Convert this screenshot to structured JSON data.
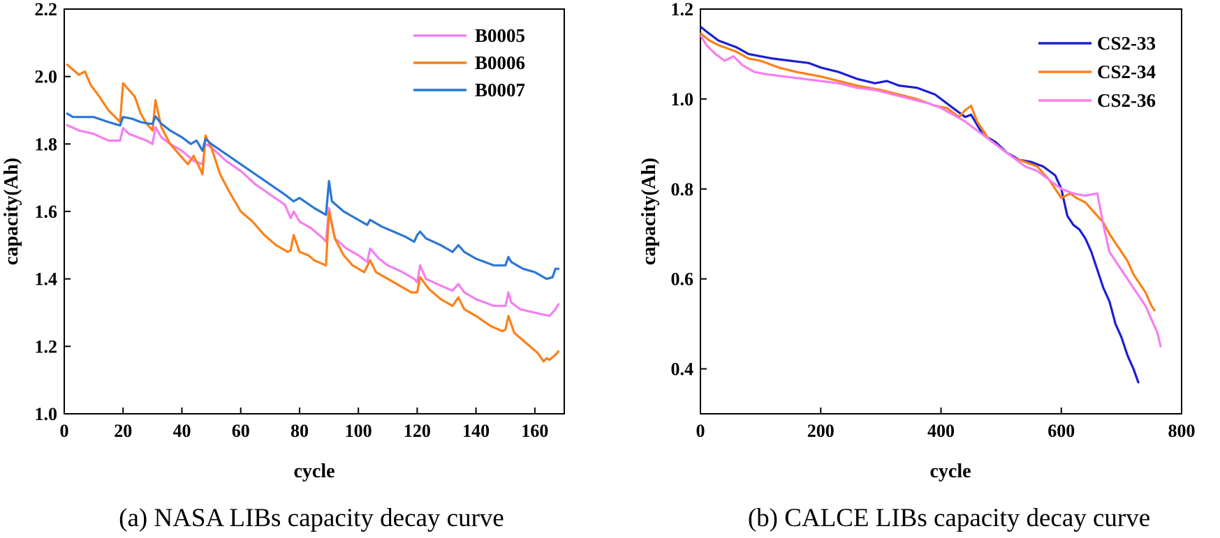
{
  "chart_data": [
    {
      "type": "line",
      "title": "",
      "caption": "(a) NASA LIBs capacity decay curve",
      "xlabel": "cycle",
      "ylabel": "capacity(Ah)",
      "xlim": [
        0,
        170
      ],
      "ylim": [
        1.0,
        2.2
      ],
      "xticks": [
        0,
        20,
        40,
        60,
        80,
        100,
        120,
        140,
        160
      ],
      "yticks": [
        1.0,
        1.2,
        1.4,
        1.6,
        1.8,
        2.0,
        2.2
      ],
      "ytick_labels": [
        "1.0",
        "1.2",
        "1.4",
        "1.6",
        "1.8",
        "2.0",
        "2.2"
      ],
      "legend_position": "top-right",
      "series": [
        {
          "name": "B0005",
          "color": "#f57ef0",
          "x": [
            1,
            5,
            10,
            15,
            19,
            20,
            22,
            25,
            28,
            30,
            31,
            33,
            36,
            40,
            44,
            47,
            48,
            50,
            55,
            60,
            65,
            70,
            75,
            77,
            78,
            80,
            84,
            88,
            89,
            90,
            92,
            96,
            100,
            103,
            104,
            107,
            110,
            115,
            119,
            120,
            121,
            123,
            128,
            132,
            134,
            136,
            140,
            146,
            150,
            151,
            152,
            155,
            160,
            165,
            167,
            168
          ],
          "y": [
            1.856,
            1.84,
            1.83,
            1.81,
            1.81,
            1.847,
            1.83,
            1.82,
            1.81,
            1.8,
            1.85,
            1.82,
            1.8,
            1.78,
            1.75,
            1.74,
            1.8,
            1.79,
            1.75,
            1.72,
            1.68,
            1.65,
            1.62,
            1.58,
            1.6,
            1.57,
            1.55,
            1.52,
            1.51,
            1.61,
            1.52,
            1.49,
            1.47,
            1.45,
            1.49,
            1.46,
            1.44,
            1.42,
            1.4,
            1.39,
            1.44,
            1.4,
            1.38,
            1.365,
            1.385,
            1.36,
            1.34,
            1.32,
            1.32,
            1.36,
            1.33,
            1.31,
            1.3,
            1.29,
            1.31,
            1.325
          ]
        },
        {
          "name": "B0006",
          "color": "#fb8117",
          "x": [
            1,
            3,
            5,
            7,
            9,
            12,
            15,
            19,
            20,
            22,
            24,
            26,
            28,
            30,
            31,
            33,
            36,
            40,
            42,
            44,
            46,
            47,
            48,
            50,
            53,
            56,
            60,
            64,
            68,
            72,
            76,
            77,
            78,
            80,
            83,
            85,
            89,
            90,
            92,
            95,
            98,
            102,
            104,
            106,
            110,
            114,
            118,
            120,
            121,
            124,
            128,
            132,
            134,
            136,
            140,
            145,
            149,
            150,
            151,
            153,
            157,
            161,
            163,
            164,
            165,
            167,
            168
          ],
          "y": [
            2.035,
            2.02,
            2.005,
            2.015,
            1.975,
            1.94,
            1.9,
            1.865,
            1.98,
            1.96,
            1.94,
            1.89,
            1.86,
            1.84,
            1.93,
            1.85,
            1.8,
            1.76,
            1.74,
            1.765,
            1.73,
            1.71,
            1.825,
            1.79,
            1.71,
            1.66,
            1.6,
            1.57,
            1.53,
            1.5,
            1.48,
            1.485,
            1.53,
            1.48,
            1.47,
            1.455,
            1.44,
            1.6,
            1.52,
            1.47,
            1.44,
            1.42,
            1.455,
            1.42,
            1.4,
            1.38,
            1.36,
            1.36,
            1.405,
            1.37,
            1.34,
            1.32,
            1.345,
            1.31,
            1.29,
            1.26,
            1.245,
            1.25,
            1.29,
            1.24,
            1.21,
            1.18,
            1.155,
            1.165,
            1.16,
            1.175,
            1.185
          ]
        },
        {
          "name": "B0007",
          "color": "#2a77d4",
          "x": [
            1,
            3,
            6,
            10,
            15,
            19,
            20,
            23,
            26,
            29,
            30,
            31,
            33,
            36,
            40,
            43,
            45,
            47,
            48,
            50,
            55,
            60,
            65,
            70,
            75,
            78,
            80,
            85,
            89,
            90,
            91,
            95,
            100,
            103,
            104,
            108,
            112,
            116,
            119,
            120,
            121,
            123,
            128,
            132,
            134,
            136,
            140,
            146,
            150,
            151,
            152,
            156,
            160,
            164,
            166,
            167,
            168
          ],
          "y": [
            1.89,
            1.88,
            1.88,
            1.88,
            1.865,
            1.855,
            1.88,
            1.875,
            1.865,
            1.86,
            1.86,
            1.882,
            1.86,
            1.84,
            1.82,
            1.8,
            1.81,
            1.78,
            1.815,
            1.8,
            1.77,
            1.74,
            1.71,
            1.68,
            1.65,
            1.63,
            1.64,
            1.61,
            1.59,
            1.69,
            1.63,
            1.6,
            1.575,
            1.56,
            1.575,
            1.555,
            1.54,
            1.525,
            1.51,
            1.53,
            1.54,
            1.52,
            1.5,
            1.48,
            1.5,
            1.48,
            1.46,
            1.44,
            1.44,
            1.465,
            1.45,
            1.43,
            1.42,
            1.4,
            1.405,
            1.43,
            1.43
          ]
        }
      ]
    },
    {
      "type": "line",
      "title": "",
      "caption": "(b) CALCE LIBs capacity decay curve",
      "xlabel": "cycle",
      "ylabel": "capacity(Ah)",
      "xlim": [
        0,
        800
      ],
      "ylim": [
        0.3,
        1.2
      ],
      "xticks": [
        0,
        200,
        400,
        600,
        800
      ],
      "yticks": [
        0.4,
        0.6,
        0.8,
        1.0,
        1.2
      ],
      "ytick_labels": [
        "0.4",
        "0.6",
        "0.8",
        "1.0",
        "1.2"
      ],
      "legend_position": "top-right",
      "series": [
        {
          "name": "CS2-33",
          "color": "#1b1fd4",
          "x": [
            1,
            10,
            30,
            50,
            60,
            80,
            100,
            120,
            150,
            180,
            200,
            230,
            260,
            290,
            310,
            330,
            360,
            390,
            420,
            440,
            450,
            470,
            490,
            510,
            530,
            550,
            570,
            590,
            600,
            610,
            620,
            630,
            640,
            650,
            660,
            670,
            680,
            690,
            700,
            710,
            720,
            728
          ],
          "y": [
            1.16,
            1.15,
            1.13,
            1.12,
            1.115,
            1.1,
            1.095,
            1.09,
            1.085,
            1.08,
            1.07,
            1.06,
            1.045,
            1.035,
            1.04,
            1.03,
            1.025,
            1.01,
            0.98,
            0.96,
            0.965,
            0.92,
            0.905,
            0.88,
            0.865,
            0.86,
            0.85,
            0.83,
            0.8,
            0.74,
            0.72,
            0.71,
            0.69,
            0.66,
            0.62,
            0.58,
            0.55,
            0.5,
            0.47,
            0.43,
            0.4,
            0.37
          ]
        },
        {
          "name": "CS2-34",
          "color": "#fb8117",
          "x": [
            1,
            15,
            30,
            50,
            60,
            80,
            100,
            130,
            160,
            200,
            230,
            260,
            300,
            330,
            360,
            390,
            410,
            430,
            440,
            450,
            460,
            480,
            500,
            520,
            540,
            560,
            580,
            600,
            615,
            625,
            640,
            660,
            670,
            680,
            690,
            700,
            710,
            720,
            730,
            740,
            750,
            755
          ],
          "y": [
            1.145,
            1.13,
            1.12,
            1.11,
            1.105,
            1.09,
            1.085,
            1.07,
            1.06,
            1.05,
            1.04,
            1.03,
            1.02,
            1.01,
            1.0,
            0.985,
            0.98,
            0.96,
            0.975,
            0.985,
            0.95,
            0.91,
            0.89,
            0.87,
            0.86,
            0.85,
            0.82,
            0.78,
            0.79,
            0.78,
            0.77,
            0.74,
            0.725,
            0.7,
            0.68,
            0.66,
            0.64,
            0.61,
            0.59,
            0.57,
            0.54,
            0.53
          ]
        },
        {
          "name": "CS2-36",
          "color": "#f57ef0",
          "x": [
            1,
            10,
            25,
            40,
            55,
            70,
            90,
            110,
            140,
            170,
            200,
            230,
            260,
            290,
            320,
            350,
            380,
            400,
            420,
            440,
            460,
            480,
            500,
            520,
            540,
            560,
            580,
            600,
            620,
            640,
            660,
            670,
            680,
            690,
            700,
            710,
            720,
            730,
            740,
            750,
            760,
            765
          ],
          "y": [
            1.14,
            1.12,
            1.1,
            1.085,
            1.095,
            1.075,
            1.06,
            1.055,
            1.05,
            1.045,
            1.04,
            1.035,
            1.025,
            1.02,
            1.01,
            1.0,
            0.99,
            0.98,
            0.965,
            0.95,
            0.93,
            0.91,
            0.89,
            0.87,
            0.85,
            0.84,
            0.82,
            0.8,
            0.79,
            0.785,
            0.79,
            0.72,
            0.66,
            0.64,
            0.62,
            0.6,
            0.58,
            0.56,
            0.54,
            0.51,
            0.48,
            0.45
          ]
        }
      ]
    }
  ]
}
